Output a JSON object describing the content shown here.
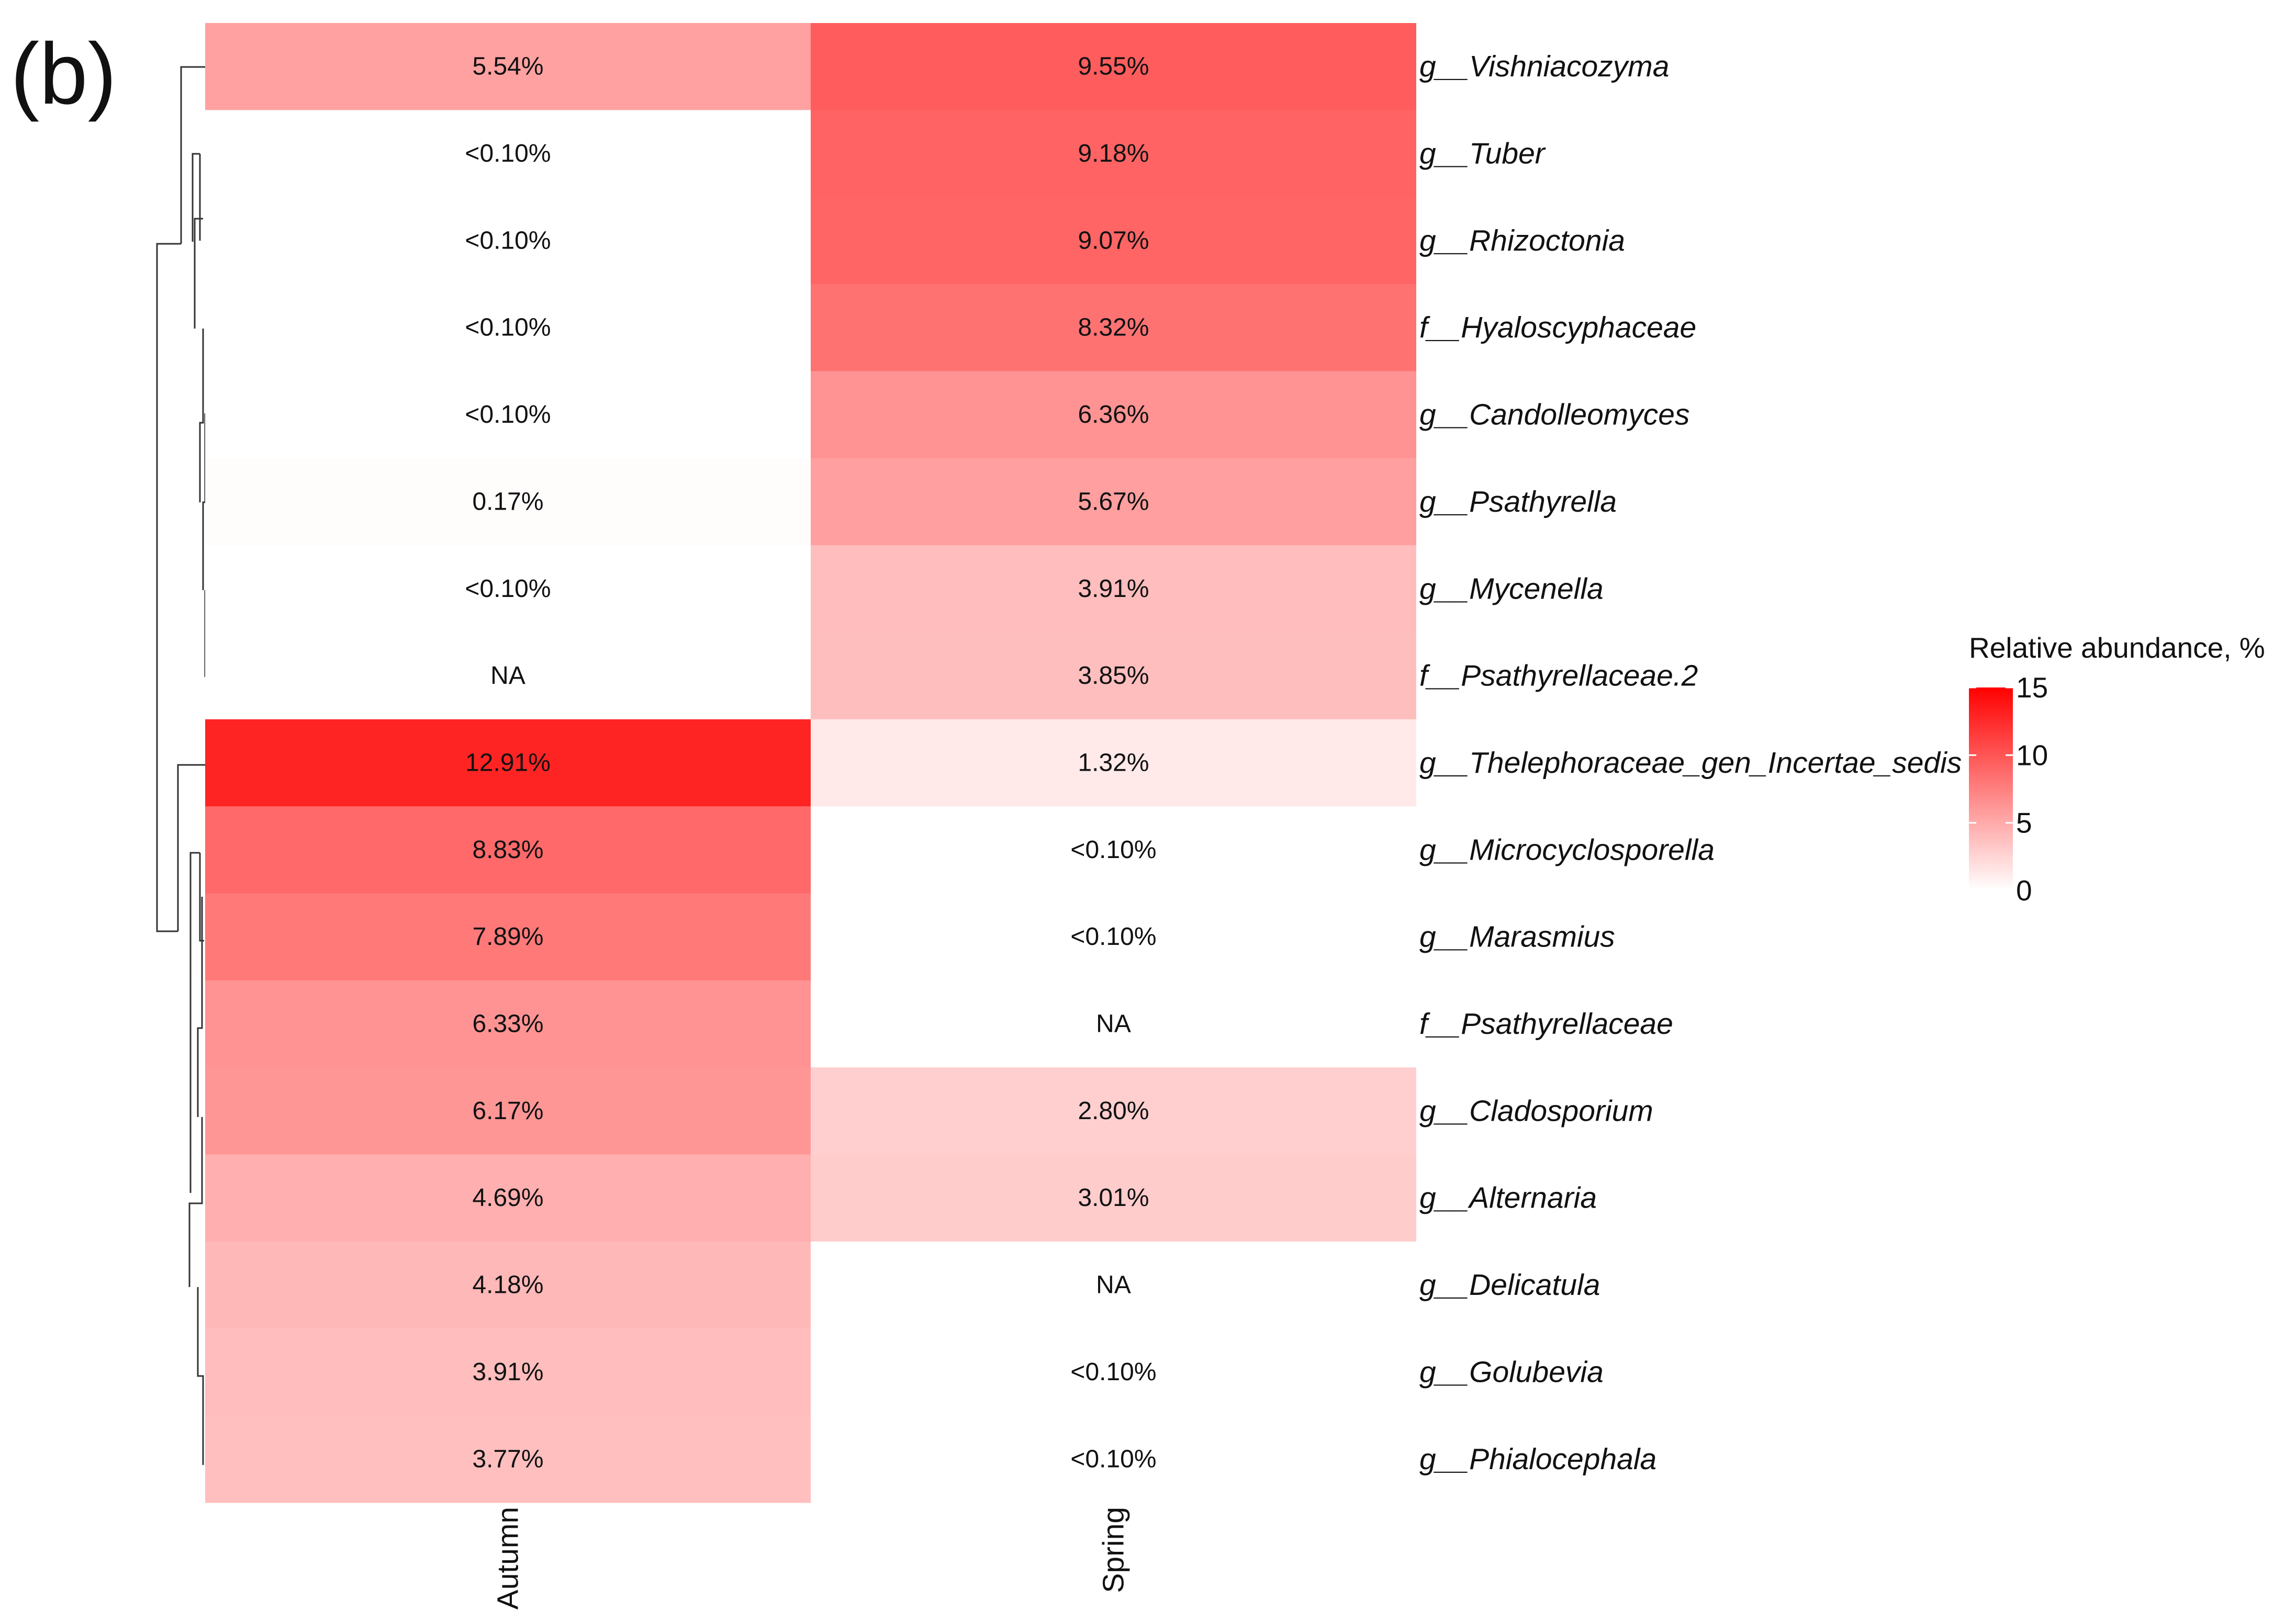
{
  "panel_label": "(b)",
  "chart_data": {
    "type": "heatmap",
    "title": "",
    "columns": [
      "Autumn",
      "Spring"
    ],
    "rows": [
      "g__Vishniacozyma",
      "g__Tuber",
      "g__Rhizoctonia",
      "f__Hyaloscyphaceae",
      "g__Candolleomyces",
      "g__Psathyrella",
      "g__Mycenella",
      "f__Psathyrellaceae.2",
      "g__Thelephoraceae_gen_Incertae_sedis",
      "g__Microcyclosporella",
      "g__Marasmius",
      "f__Psathyrellaceae",
      "g__Cladosporium",
      "g__Alternaria",
      "g__Delicatula",
      "g__Golubevia",
      "g__Phialocephala"
    ],
    "values": [
      [
        5.54,
        9.55
      ],
      [
        0.0,
        9.18
      ],
      [
        0.0,
        9.07
      ],
      [
        0.0,
        8.32
      ],
      [
        0.0,
        6.36
      ],
      [
        0.17,
        5.67
      ],
      [
        0.0,
        3.91
      ],
      [
        null,
        3.85
      ],
      [
        12.91,
        1.32
      ],
      [
        8.83,
        0.0
      ],
      [
        7.89,
        0.0
      ],
      [
        6.33,
        null
      ],
      [
        6.17,
        2.8
      ],
      [
        4.69,
        3.01
      ],
      [
        4.18,
        null
      ],
      [
        3.91,
        0.0
      ],
      [
        3.77,
        0.0
      ]
    ],
    "labels": [
      [
        "5.54%",
        "9.55%"
      ],
      [
        "<0.10%",
        "9.18%"
      ],
      [
        "<0.10%",
        "9.07%"
      ],
      [
        "<0.10%",
        "8.32%"
      ],
      [
        "<0.10%",
        "6.36%"
      ],
      [
        "0.17%",
        "5.67%"
      ],
      [
        "<0.10%",
        "3.91%"
      ],
      [
        "NA",
        "3.85%"
      ],
      [
        "12.91%",
        "1.32%"
      ],
      [
        "8.83%",
        "<0.10%"
      ],
      [
        "7.89%",
        "<0.10%"
      ],
      [
        "6.33%",
        "NA"
      ],
      [
        "6.17%",
        "2.80%"
      ],
      [
        "4.69%",
        "3.01%"
      ],
      [
        "4.18%",
        "NA"
      ],
      [
        "3.91%",
        "<0.10%"
      ],
      [
        "3.77%",
        "<0.10%"
      ]
    ],
    "color_scale": {
      "title": "Relative abundance, %",
      "min": 0,
      "max": 15,
      "low_color": "#FFFFFF",
      "high_color": "#FF0000",
      "ticks": [
        0,
        5,
        10,
        15
      ]
    },
    "row_dendrogram": "left",
    "legend_position": "right"
  }
}
